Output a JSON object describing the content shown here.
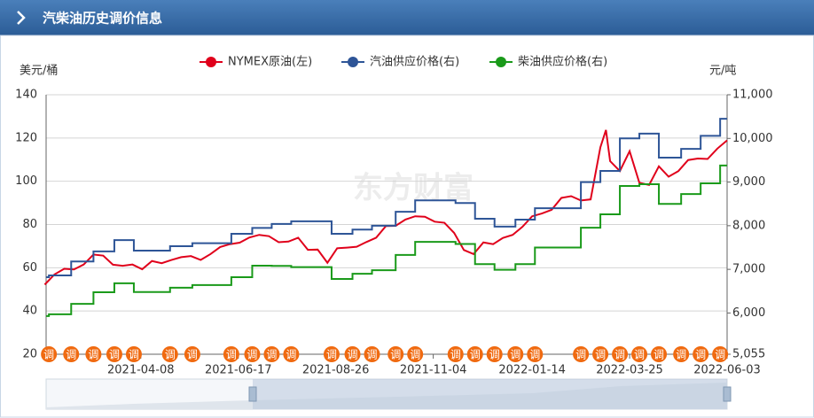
{
  "header": {
    "title": "汽柴油历史调价信息"
  },
  "chart_data": {
    "type": "line",
    "y_label": "美元/桶",
    "y2_label": "元/吨",
    "watermark": "东方财富",
    "x": [
      "2021-01-29",
      "2021-02-05",
      "2021-02-12",
      "2021-02-19",
      "2021-02-26",
      "2021-03-05",
      "2021-03-12",
      "2021-03-19",
      "2021-03-26",
      "2021-04-02",
      "2021-04-09",
      "2021-04-16",
      "2021-04-23",
      "2021-04-30",
      "2021-05-07",
      "2021-05-14",
      "2021-05-21",
      "2021-05-28",
      "2021-06-04",
      "2021-06-11",
      "2021-06-18",
      "2021-06-25",
      "2021-07-02",
      "2021-07-09",
      "2021-07-16",
      "2021-07-23",
      "2021-07-30",
      "2021-08-06",
      "2021-08-13",
      "2021-08-20",
      "2021-08-27",
      "2021-09-03",
      "2021-09-10",
      "2021-09-17",
      "2021-09-24",
      "2021-10-01",
      "2021-10-08",
      "2021-10-15",
      "2021-10-22",
      "2021-10-29",
      "2021-11-05",
      "2021-11-12",
      "2021-11-19",
      "2021-11-26",
      "2021-12-03",
      "2021-12-10",
      "2021-12-17",
      "2021-12-24",
      "2021-12-31",
      "2022-01-07",
      "2022-01-14",
      "2022-01-21",
      "2022-01-28",
      "2022-02-04",
      "2022-02-11",
      "2022-02-18",
      "2022-02-25",
      "2022-03-04",
      "2022-03-08",
      "2022-03-11",
      "2022-03-18",
      "2022-03-25",
      "2022-04-01",
      "2022-04-08",
      "2022-04-15",
      "2022-04-22",
      "2022-04-29",
      "2022-05-06",
      "2022-05-13",
      "2022-05-20",
      "2022-05-27",
      "2022-06-03"
    ],
    "series": [
      {
        "name": "NYMEX原油(左)",
        "color": "#e0001b",
        "values": [
          52.2,
          56.9,
          59.5,
          59.2,
          61.5,
          66.1,
          65.6,
          61.4,
          60.9,
          61.5,
          59.3,
          63.1,
          62.1,
          63.6,
          64.9,
          65.4,
          63.6,
          66.3,
          69.6,
          70.9,
          71.6,
          74.0,
          75.2,
          74.6,
          71.8,
          72.1,
          73.9,
          68.3,
          68.4,
          62.3,
          69.0,
          69.3,
          69.7,
          71.9,
          73.9,
          79.3,
          79.4,
          82.3,
          83.8,
          83.6,
          81.3,
          80.8,
          76.1,
          68.2,
          66.3,
          71.7,
          70.9,
          73.8,
          75.2,
          78.9,
          83.8,
          85.1,
          86.8,
          92.3,
          93.1,
          91.1,
          91.6,
          115.7,
          123.7,
          109.3,
          104.7,
          113.9,
          99.3,
          98.3,
          106.9,
          102.1,
          104.7,
          109.8,
          110.5,
          110.3,
          115.1,
          118.9
        ]
      },
      {
        "name": "汽油供应价格(右)",
        "color": "#2e5597",
        "axis": "y2",
        "step": true,
        "x": [
          "2021-01-30",
          "2021-02-01",
          "2021-02-17",
          "2021-03-05",
          "2021-03-20",
          "2021-04-03",
          "2021-04-29",
          "2021-05-15",
          "2021-06-12",
          "2021-06-27",
          "2021-07-11",
          "2021-07-25",
          "2021-08-23",
          "2021-09-07",
          "2021-09-21",
          "2021-10-08",
          "2021-10-22",
          "2021-11-20",
          "2021-12-04",
          "2021-12-18",
          "2022-01-02",
          "2022-01-16",
          "2022-02-18",
          "2022-03-04",
          "2022-03-18",
          "2022-04-01",
          "2022-04-15",
          "2022-05-01",
          "2022-05-15",
          "2022-05-29"
        ],
        "values": [
          6820,
          6860,
          7180,
          7410,
          7670,
          7430,
          7530,
          7600,
          7815,
          7950,
          8040,
          8100,
          7815,
          7910,
          8000,
          8320,
          8580,
          8520,
          8160,
          7980,
          8140,
          8400,
          9000,
          9255,
          10000,
          10110,
          9560,
          9760,
          10060,
          10450
        ]
      },
      {
        "name": "柴油供应价格(右)",
        "color": "#1a9a1a",
        "axis": "y2",
        "step": true,
        "x": [
          "2021-01-30",
          "2021-02-01",
          "2021-02-17",
          "2021-03-05",
          "2021-03-20",
          "2021-04-03",
          "2021-04-29",
          "2021-05-15",
          "2021-06-12",
          "2021-06-27",
          "2021-07-11",
          "2021-07-25",
          "2021-08-23",
          "2021-09-07",
          "2021-09-21",
          "2021-10-08",
          "2021-10-22",
          "2021-11-20",
          "2021-12-04",
          "2021-12-18",
          "2022-01-02",
          "2022-01-16",
          "2022-02-18",
          "2022-03-04",
          "2022-03-18",
          "2022-04-01",
          "2022-04-15",
          "2022-05-01",
          "2022-05-15",
          "2022-05-29"
        ],
        "values": [
          5930,
          5970,
          6210,
          6475,
          6680,
          6480,
          6580,
          6640,
          6820,
          7085,
          7080,
          7050,
          6780,
          6900,
          6980,
          7330,
          7630,
          7580,
          7120,
          6990,
          7120,
          7500,
          7955,
          8260,
          8910,
          8950,
          8500,
          8725,
          8970,
          9380
        ]
      }
    ],
    "adjustments": {
      "label": "调",
      "color": "#f06a10",
      "dates": [
        "2021-02-01",
        "2021-02-17",
        "2021-03-05",
        "2021-03-20",
        "2021-04-03",
        "2021-04-29",
        "2021-05-15",
        "2021-06-12",
        "2021-06-27",
        "2021-07-11",
        "2021-07-25",
        "2021-08-23",
        "2021-09-07",
        "2021-09-21",
        "2021-10-08",
        "2021-10-22",
        "2021-11-20",
        "2021-12-04",
        "2021-12-18",
        "2022-01-02",
        "2022-01-16",
        "2022-02-18",
        "2022-03-04",
        "2022-03-18",
        "2022-04-01",
        "2022-04-15",
        "2022-05-01",
        "2022-05-15",
        "2022-05-29"
      ]
    },
    "xlim": [
      "2021-01-30",
      "2022-06-03"
    ],
    "xticks": [
      "2021-04-08",
      "2021-06-17",
      "2021-08-26",
      "2021-11-04",
      "2022-01-14",
      "2022-03-25",
      "2022-06-03"
    ],
    "ylim": [
      20,
      140
    ],
    "yticks": [
      20,
      40,
      60,
      80,
      100,
      120,
      140
    ],
    "y2lim": [
      5055,
      11000
    ],
    "y2ticks": [
      {
        "value": 5055,
        "label": "5,055"
      },
      {
        "value": 6000,
        "label": "6,000"
      },
      {
        "value": 7000,
        "label": "7,000"
      },
      {
        "value": 8000,
        "label": "8,000"
      },
      {
        "value": 9000,
        "label": "9,000"
      },
      {
        "value": 10000,
        "label": "10,000"
      },
      {
        "value": 11000,
        "label": "11,000"
      }
    ],
    "grid": true
  }
}
